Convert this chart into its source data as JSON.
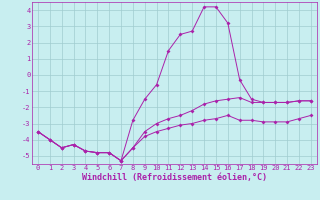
{
  "xlabel": "Windchill (Refroidissement éolien,°C)",
  "background_color": "#c8eef0",
  "line_color": "#aa22aa",
  "xlim": [
    -0.5,
    23.5
  ],
  "ylim": [
    -5.5,
    4.5
  ],
  "yticks": [
    -5,
    -4,
    -3,
    -2,
    -1,
    0,
    1,
    2,
    3,
    4
  ],
  "xticks": [
    0,
    1,
    2,
    3,
    4,
    5,
    6,
    7,
    8,
    9,
    10,
    11,
    12,
    13,
    14,
    15,
    16,
    17,
    18,
    19,
    20,
    21,
    22,
    23
  ],
  "line_wiggly_x": [
    0,
    1,
    2,
    3,
    4,
    5,
    6,
    7,
    8,
    9,
    10,
    11,
    12,
    13,
    14,
    15,
    16,
    17,
    18,
    19,
    20,
    21,
    22,
    23
  ],
  "line_wiggly_y": [
    -3.5,
    -4.0,
    -4.5,
    -4.3,
    -4.7,
    -4.8,
    -4.8,
    -5.3,
    -2.8,
    -1.5,
    -0.6,
    1.5,
    2.5,
    2.7,
    4.2,
    4.2,
    3.2,
    -0.3,
    -1.5,
    -1.7,
    -1.7,
    -1.7,
    -1.6,
    -1.6
  ],
  "line_upper_x": [
    0,
    1,
    2,
    3,
    4,
    5,
    6,
    7,
    8,
    9,
    10,
    11,
    12,
    13,
    14,
    15,
    16,
    17,
    18,
    19,
    20,
    21,
    22,
    23
  ],
  "line_upper_y": [
    -3.5,
    -4.0,
    -4.5,
    -4.3,
    -4.7,
    -4.8,
    -4.8,
    -5.3,
    -4.5,
    -3.5,
    -3.0,
    -2.7,
    -2.5,
    -2.2,
    -1.8,
    -1.6,
    -1.5,
    -1.4,
    -1.7,
    -1.7,
    -1.7,
    -1.7,
    -1.6,
    -1.6
  ],
  "line_lower_x": [
    0,
    1,
    2,
    3,
    4,
    5,
    6,
    7,
    8,
    9,
    10,
    11,
    12,
    13,
    14,
    15,
    16,
    17,
    18,
    19,
    20,
    21,
    22,
    23
  ],
  "line_lower_y": [
    -3.5,
    -4.0,
    -4.5,
    -4.3,
    -4.7,
    -4.8,
    -4.8,
    -5.3,
    -4.5,
    -3.8,
    -3.5,
    -3.3,
    -3.1,
    -3.0,
    -2.8,
    -2.7,
    -2.5,
    -2.8,
    -2.8,
    -2.9,
    -2.9,
    -2.9,
    -2.7,
    -2.5
  ],
  "grid_color": "#a0ccd0",
  "markersize": 2.0,
  "linewidth": 0.7,
  "tick_fontsize": 5.0,
  "xlabel_fontsize": 6.0
}
